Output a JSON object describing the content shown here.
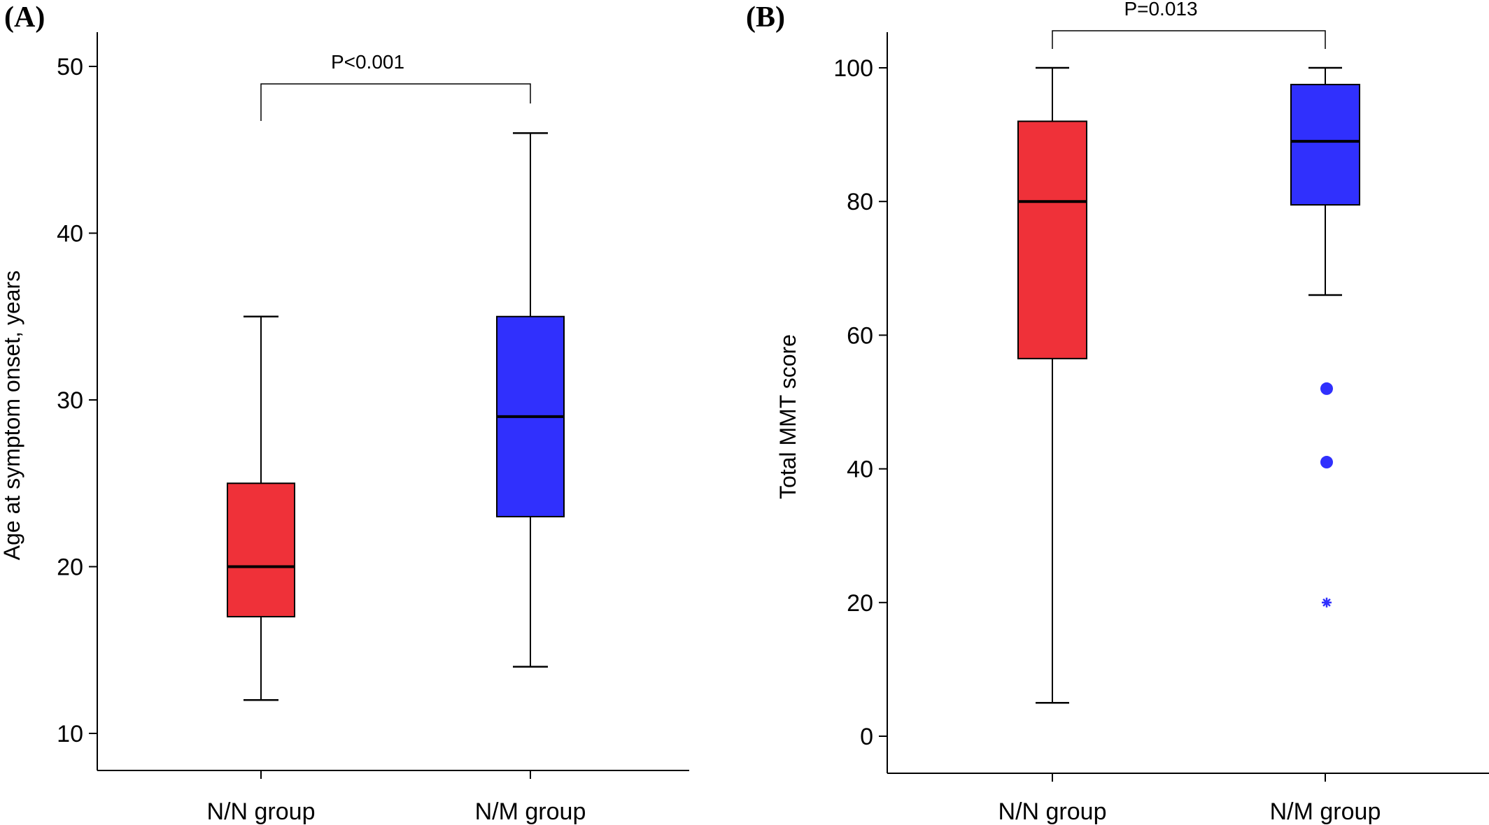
{
  "colors": {
    "nn_group": "#ef3139",
    "nm_group": "#3030fd",
    "outlier": "#3030fd"
  },
  "chart_data": [
    {
      "panel_label": "(A)",
      "type": "boxplot",
      "ylabel": "Age at symptom onset, years",
      "ylim": [
        9,
        52
      ],
      "yticks": [
        10,
        20,
        30,
        40,
        50
      ],
      "categories": [
        "N/N group",
        "N/M group"
      ],
      "boxes": [
        {
          "category": "N/N group",
          "whisker_low": 12,
          "q1": 17,
          "median": 20,
          "q3": 25,
          "whisker_high": 35,
          "outliers": []
        },
        {
          "category": "N/M group",
          "whisker_low": 14,
          "q1": 23,
          "median": 29,
          "q3": 35,
          "whisker_high": 46,
          "outliers": []
        }
      ],
      "significance": {
        "label": "P<0.001",
        "between": [
          "N/N group",
          "N/M group"
        ]
      }
    },
    {
      "panel_label": "(B)",
      "type": "boxplot",
      "ylabel": "Total MMT score",
      "ylim": [
        -5,
        105
      ],
      "yticks": [
        0,
        20,
        40,
        60,
        80,
        100
      ],
      "categories": [
        "N/N group",
        "N/M group"
      ],
      "boxes": [
        {
          "category": "N/N group",
          "whisker_low": 5,
          "q1": 56.5,
          "median": 80,
          "q3": 92,
          "whisker_high": 100,
          "outliers": []
        },
        {
          "category": "N/M group",
          "whisker_low": 66,
          "q1": 79.5,
          "median": 89,
          "q3": 97.5,
          "whisker_high": 100,
          "outliers": [
            {
              "value": 52,
              "marker": "circle"
            },
            {
              "value": 41,
              "marker": "circle"
            },
            {
              "value": 20,
              "marker": "star"
            }
          ]
        }
      ],
      "significance": {
        "label": "P=0.013",
        "between": [
          "N/N group",
          "N/M group"
        ]
      }
    }
  ]
}
